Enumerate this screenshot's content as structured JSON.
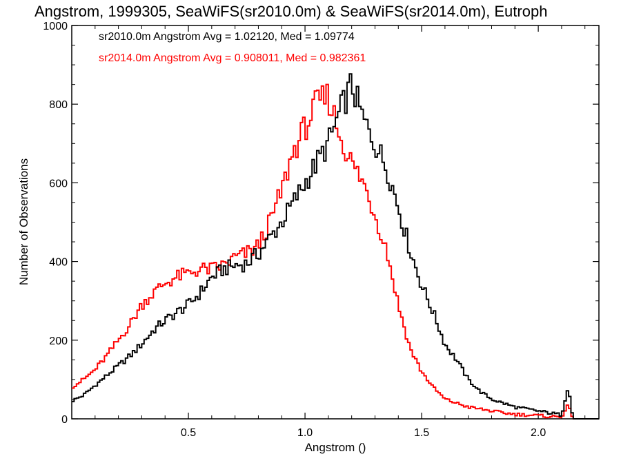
{
  "chart_data": {
    "type": "line",
    "title": "Angstrom, 1999305, SeaWiFS(sr2010.0m) & SeaWiFS(sr2014.0m), Eutroph",
    "xlabel": "Angstrom ()",
    "ylabel": "Number of Observations",
    "xlim": [
      0.0,
      2.26
    ],
    "ylim": [
      0,
      1000
    ],
    "x_ticks": [
      0.5,
      1.0,
      1.5,
      2.0
    ],
    "x_tick_labels": [
      "0.5",
      "1.0",
      "1.5",
      "2.0"
    ],
    "y_ticks": [
      0,
      200,
      400,
      600,
      800,
      1000
    ],
    "y_tick_labels": [
      "0",
      "200",
      "400",
      "600",
      "800",
      "1000"
    ],
    "grid": false,
    "legend_position": "top-left",
    "stats_text": [
      "sr2010.0m Angstrom Avg = 1.02120, Med = 1.09774",
      "sr2014.0m Angstrom Avg = 0.908011, Med = 0.982361"
    ],
    "series": [
      {
        "color": "#000000",
        "x": [
          0.0,
          0.05,
          0.1,
          0.15,
          0.2,
          0.25,
          0.3,
          0.35,
          0.4,
          0.45,
          0.5,
          0.55,
          0.6,
          0.65,
          0.7,
          0.75,
          0.8,
          0.85,
          0.9,
          0.95,
          1.0,
          1.05,
          1.1,
          1.15,
          1.2,
          1.25,
          1.3,
          1.35,
          1.4,
          1.45,
          1.5,
          1.55,
          1.6,
          1.65,
          1.7,
          1.75,
          1.8,
          1.85,
          1.9,
          1.95,
          2.0,
          2.05,
          2.1,
          2.13,
          2.14,
          2.15,
          2.2,
          2.25
        ],
        "values": [
          45,
          60,
          85,
          110,
          135,
          160,
          190,
          225,
          250,
          270,
          290,
          320,
          360,
          380,
          390,
          395,
          420,
          460,
          500,
          550,
          600,
          650,
          700,
          780,
          850,
          760,
          700,
          640,
          540,
          430,
          340,
          270,
          190,
          150,
          100,
          70,
          50,
          40,
          30,
          25,
          20,
          15,
          10,
          88,
          30,
          0,
          0,
          0
        ]
      },
      {
        "color": "#ff0000",
        "x": [
          0.0,
          0.05,
          0.1,
          0.15,
          0.2,
          0.25,
          0.3,
          0.35,
          0.4,
          0.45,
          0.5,
          0.55,
          0.6,
          0.65,
          0.7,
          0.75,
          0.8,
          0.85,
          0.9,
          0.95,
          1.0,
          1.05,
          1.1,
          1.15,
          1.2,
          1.25,
          1.3,
          1.35,
          1.4,
          1.45,
          1.5,
          1.55,
          1.6,
          1.65,
          1.7,
          1.75,
          1.8,
          1.85,
          1.9,
          1.95,
          2.0,
          2.05,
          2.1,
          2.13,
          2.14,
          2.15,
          2.2,
          2.25
        ],
        "values": [
          80,
          100,
          125,
          160,
          200,
          240,
          290,
          320,
          345,
          360,
          370,
          380,
          380,
          390,
          410,
          420,
          440,
          500,
          580,
          680,
          740,
          800,
          820,
          720,
          650,
          600,
          520,
          430,
          290,
          180,
          120,
          80,
          50,
          40,
          30,
          25,
          20,
          15,
          12,
          10,
          8,
          6,
          5,
          40,
          5,
          0,
          0,
          0
        ]
      }
    ]
  }
}
